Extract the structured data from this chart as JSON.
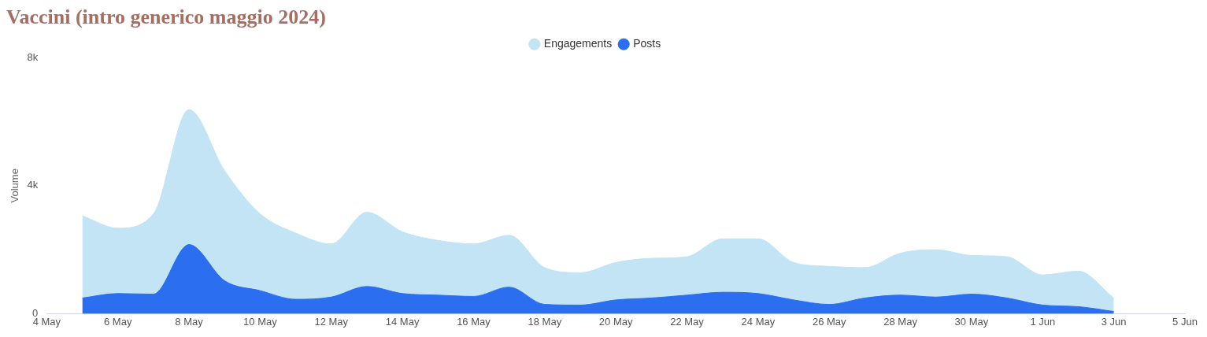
{
  "chart_data": {
    "type": "area",
    "title": "Vaccini (intro generico maggio 2024)",
    "ylabel": "Volume",
    "x": [
      "2024-05-05",
      "2024-05-06",
      "2024-05-07",
      "2024-05-08",
      "2024-05-09",
      "2024-05-10",
      "2024-05-11",
      "2024-05-12",
      "2024-05-13",
      "2024-05-14",
      "2024-05-15",
      "2024-05-16",
      "2024-05-17",
      "2024-05-18",
      "2024-05-19",
      "2024-05-20",
      "2024-05-21",
      "2024-05-22",
      "2024-05-23",
      "2024-05-24",
      "2024-05-25",
      "2024-05-26",
      "2024-05-27",
      "2024-05-28",
      "2024-05-29",
      "2024-05-30",
      "2024-05-31",
      "2024-06-01",
      "2024-06-02",
      "2024-06-03"
    ],
    "series": [
      {
        "name": "Engagements",
        "color": "#c2e4f4",
        "values": [
          3060,
          2670,
          3120,
          6380,
          4470,
          3120,
          2520,
          2180,
          3170,
          2560,
          2290,
          2180,
          2450,
          1440,
          1280,
          1600,
          1730,
          1780,
          2340,
          2340,
          1600,
          1480,
          1440,
          1890,
          2000,
          1820,
          1780,
          1210,
          1330,
          490
        ]
      },
      {
        "name": "Posts",
        "color": "#2b6ff0",
        "values": [
          490,
          630,
          610,
          2160,
          1030,
          720,
          450,
          520,
          850,
          630,
          580,
          540,
          830,
          290,
          270,
          430,
          490,
          580,
          670,
          630,
          430,
          290,
          490,
          580,
          520,
          610,
          490,
          270,
          220,
          70
        ]
      }
    ],
    "xlim": [
      "2024-05-04",
      "2024-06-05"
    ],
    "xticks": [
      {
        "value": "2024-05-04",
        "label": "4 May"
      },
      {
        "value": "2024-05-06",
        "label": "6 May"
      },
      {
        "value": "2024-05-08",
        "label": "8 May"
      },
      {
        "value": "2024-05-10",
        "label": "10 May"
      },
      {
        "value": "2024-05-12",
        "label": "12 May"
      },
      {
        "value": "2024-05-14",
        "label": "14 May"
      },
      {
        "value": "2024-05-16",
        "label": "16 May"
      },
      {
        "value": "2024-05-18",
        "label": "18 May"
      },
      {
        "value": "2024-05-20",
        "label": "20 May"
      },
      {
        "value": "2024-05-22",
        "label": "22 May"
      },
      {
        "value": "2024-05-24",
        "label": "24 May"
      },
      {
        "value": "2024-05-26",
        "label": "26 May"
      },
      {
        "value": "2024-05-28",
        "label": "28 May"
      },
      {
        "value": "2024-05-30",
        "label": "30 May"
      },
      {
        "value": "2024-06-01",
        "label": "1 Jun"
      },
      {
        "value": "2024-06-03",
        "label": "3 Jun"
      },
      {
        "value": "2024-06-05",
        "label": "5 Jun"
      }
    ],
    "ylim": [
      0,
      8000
    ],
    "yticks": [
      {
        "value": 0,
        "label": "0"
      },
      {
        "value": 4000,
        "label": "4k"
      },
      {
        "value": 8000,
        "label": "8k"
      }
    ],
    "legend": "top",
    "grid": false
  }
}
